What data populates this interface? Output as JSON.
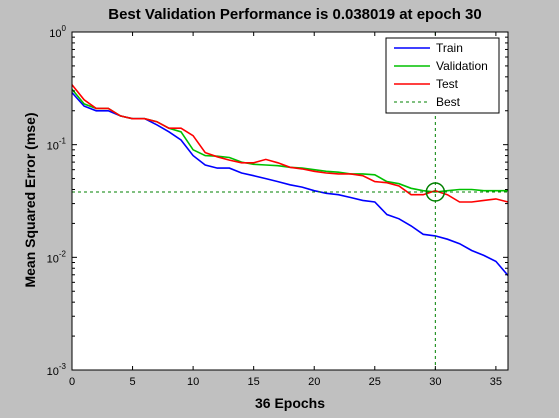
{
  "chart_data": {
    "type": "line",
    "title": "Best Validation Performance is 0.038019 at epoch 30",
    "xlabel": "36 Epochs",
    "ylabel": "Mean Squared Error  (mse)",
    "xlim": [
      0,
      36
    ],
    "ylim": [
      0.001,
      1
    ],
    "yscale": "log",
    "xticks": [
      0,
      5,
      10,
      15,
      20,
      25,
      30,
      35
    ],
    "yticks": [
      {
        "value": 1,
        "base": "10",
        "exp": "0"
      },
      {
        "value": 0.1,
        "base": "10",
        "exp": "-1"
      },
      {
        "value": 0.01,
        "base": "10",
        "exp": "-2"
      },
      {
        "value": 0.001,
        "base": "10",
        "exp": "-3"
      }
    ],
    "grid": false,
    "legend_position": "top-right",
    "series": [
      {
        "name": "Train",
        "color": "#0000ff",
        "x": [
          0,
          1,
          2,
          3,
          4,
          5,
          6,
          7,
          8,
          9,
          10,
          11,
          12,
          13,
          14,
          15,
          16,
          17,
          18,
          19,
          20,
          21,
          22,
          23,
          24,
          25,
          26,
          27,
          28,
          29,
          30,
          31,
          32,
          33,
          34,
          35,
          36
        ],
        "values": [
          0.29,
          0.22,
          0.2,
          0.2,
          0.18,
          0.17,
          0.17,
          0.15,
          0.13,
          0.11,
          0.08,
          0.066,
          0.062,
          0.062,
          0.056,
          0.053,
          0.05,
          0.047,
          0.044,
          0.042,
          0.039,
          0.037,
          0.036,
          0.034,
          0.032,
          0.031,
          0.024,
          0.022,
          0.019,
          0.016,
          0.0155,
          0.0145,
          0.0132,
          0.0115,
          0.0104,
          0.0092,
          0.0069
        ]
      },
      {
        "name": "Validation",
        "color": "#00c000",
        "x": [
          0,
          1,
          2,
          3,
          4,
          5,
          6,
          7,
          8,
          9,
          10,
          11,
          12,
          13,
          14,
          15,
          16,
          17,
          18,
          19,
          20,
          21,
          22,
          23,
          24,
          25,
          26,
          27,
          28,
          29,
          30,
          31,
          32,
          33,
          34,
          35,
          36
        ],
        "values": [
          0.31,
          0.23,
          0.21,
          0.21,
          0.18,
          0.17,
          0.17,
          0.16,
          0.14,
          0.13,
          0.09,
          0.08,
          0.079,
          0.077,
          0.07,
          0.067,
          0.066,
          0.065,
          0.063,
          0.062,
          0.06,
          0.058,
          0.057,
          0.055,
          0.055,
          0.054,
          0.047,
          0.045,
          0.041,
          0.039,
          0.038019,
          0.039,
          0.04,
          0.04,
          0.039,
          0.039,
          0.039
        ]
      },
      {
        "name": "Test",
        "color": "#ff0000",
        "x": [
          0,
          1,
          2,
          3,
          4,
          5,
          6,
          7,
          8,
          9,
          10,
          11,
          12,
          13,
          14,
          15,
          16,
          17,
          18,
          19,
          20,
          21,
          22,
          23,
          24,
          25,
          26,
          27,
          28,
          29,
          30,
          31,
          32,
          33,
          34,
          35,
          36
        ],
        "values": [
          0.34,
          0.25,
          0.21,
          0.21,
          0.18,
          0.17,
          0.17,
          0.16,
          0.14,
          0.14,
          0.12,
          0.085,
          0.078,
          0.073,
          0.069,
          0.069,
          0.074,
          0.069,
          0.063,
          0.061,
          0.058,
          0.056,
          0.055,
          0.055,
          0.053,
          0.047,
          0.046,
          0.043,
          0.036,
          0.036,
          0.039,
          0.036,
          0.031,
          0.031,
          0.032,
          0.033,
          0.031
        ]
      }
    ],
    "best": {
      "name": "Best",
      "color": "#008000",
      "epoch": 30,
      "value": 0.038019
    }
  }
}
